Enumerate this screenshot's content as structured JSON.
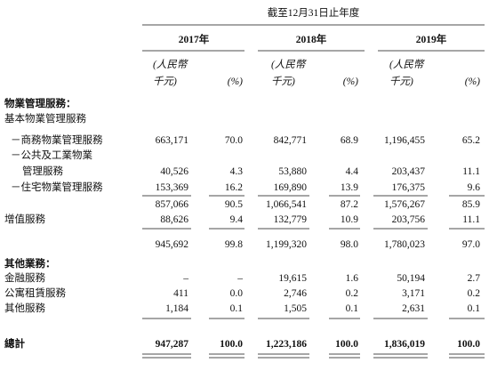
{
  "header": {
    "period": "截至12月31日止年度",
    "years": [
      {
        "year": "2017年",
        "amount_unit": [
          "(人民幣",
          "千元)"
        ],
        "percent_unit": "(%)"
      },
      {
        "year": "2018年",
        "amount_unit": [
          "(人民幣",
          "千元)"
        ],
        "percent_unit": "(%)"
      },
      {
        "year": "2019年",
        "amount_unit": [
          "(人民幣",
          "千元)"
        ],
        "percent_unit": "(%)"
      }
    ]
  },
  "table": {
    "rows": [
      {
        "label": "物業管理服務："
      },
      {
        "label": "基本物業管理服務"
      },
      {
        "label": "－商務物業管理服務",
        "values": [
          "663,171",
          "70.0",
          "842,771",
          "68.9",
          "1,196,455",
          "65.2"
        ]
      },
      {
        "label": "－公共及工業物業"
      },
      {
        "label": "管理服務",
        "values": [
          "40,526",
          "4.3",
          "53,880",
          "4.4",
          "203,437",
          "11.1"
        ]
      },
      {
        "label": "－住宅物業管理服務",
        "values": [
          "153,369",
          "16.2",
          "169,890",
          "13.9",
          "176,375",
          "9.6"
        ]
      },
      {
        "values": [
          "857,066",
          "90.5",
          "1,066,541",
          "87.2",
          "1,576,267",
          "85.9"
        ]
      },
      {
        "label": "增值服務",
        "values": [
          "88,626",
          "9.4",
          "132,779",
          "10.9",
          "203,756",
          "11.1"
        ]
      },
      {
        "values": [
          "945,692",
          "99.8",
          "1,199,320",
          "98.0",
          "1,780,023",
          "97.0"
        ]
      },
      {
        "label": "其他業務："
      },
      {
        "label": "金融服務",
        "values": [
          "–",
          "–",
          "19,615",
          "1.6",
          "50,194",
          "2.7"
        ]
      },
      {
        "label": "公寓租賃服務",
        "values": [
          "411",
          "0.0",
          "2,746",
          "0.2",
          "3,171",
          "0.2"
        ]
      },
      {
        "label": "其他服務",
        "values": [
          "1,184",
          "0.1",
          "1,505",
          "0.1",
          "2,631",
          "0.1"
        ]
      },
      {
        "label": "總計",
        "values": [
          "947,287",
          "100.0",
          "1,223,186",
          "100.0",
          "1,836,019",
          "100.0"
        ]
      }
    ]
  }
}
